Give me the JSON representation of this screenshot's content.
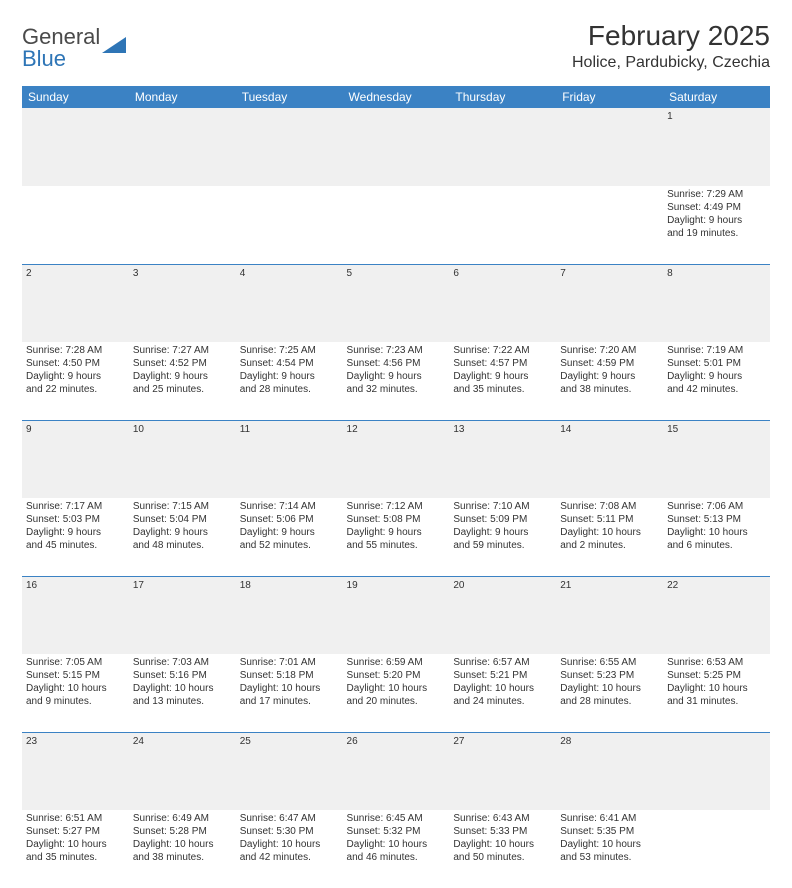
{
  "header": {
    "logo_main": "General",
    "logo_accent": "Blue",
    "month_title": "February 2025",
    "location": "Holice, Pardubicky, Czechia"
  },
  "colors": {
    "header_bg": "#3b82c4",
    "header_text": "#ffffff",
    "daynum_bg": "#f0f0f0",
    "border": "#3b82c4",
    "logo_accent": "#2e75b6"
  },
  "calendar": {
    "type": "table",
    "day_headers": [
      "Sunday",
      "Monday",
      "Tuesday",
      "Wednesday",
      "Thursday",
      "Friday",
      "Saturday"
    ],
    "weeks": [
      [
        {
          "day": "",
          "lines": [
            "",
            "",
            "",
            ""
          ]
        },
        {
          "day": "",
          "lines": [
            "",
            "",
            "",
            ""
          ]
        },
        {
          "day": "",
          "lines": [
            "",
            "",
            "",
            ""
          ]
        },
        {
          "day": "",
          "lines": [
            "",
            "",
            "",
            ""
          ]
        },
        {
          "day": "",
          "lines": [
            "",
            "",
            "",
            ""
          ]
        },
        {
          "day": "",
          "lines": [
            "",
            "",
            "",
            ""
          ]
        },
        {
          "day": "1",
          "lines": [
            "Sunrise: 7:29 AM",
            "Sunset: 4:49 PM",
            "Daylight: 9 hours",
            "and 19 minutes."
          ]
        }
      ],
      [
        {
          "day": "2",
          "lines": [
            "Sunrise: 7:28 AM",
            "Sunset: 4:50 PM",
            "Daylight: 9 hours",
            "and 22 minutes."
          ]
        },
        {
          "day": "3",
          "lines": [
            "Sunrise: 7:27 AM",
            "Sunset: 4:52 PM",
            "Daylight: 9 hours",
            "and 25 minutes."
          ]
        },
        {
          "day": "4",
          "lines": [
            "Sunrise: 7:25 AM",
            "Sunset: 4:54 PM",
            "Daylight: 9 hours",
            "and 28 minutes."
          ]
        },
        {
          "day": "5",
          "lines": [
            "Sunrise: 7:23 AM",
            "Sunset: 4:56 PM",
            "Daylight: 9 hours",
            "and 32 minutes."
          ]
        },
        {
          "day": "6",
          "lines": [
            "Sunrise: 7:22 AM",
            "Sunset: 4:57 PM",
            "Daylight: 9 hours",
            "and 35 minutes."
          ]
        },
        {
          "day": "7",
          "lines": [
            "Sunrise: 7:20 AM",
            "Sunset: 4:59 PM",
            "Daylight: 9 hours",
            "and 38 minutes."
          ]
        },
        {
          "day": "8",
          "lines": [
            "Sunrise: 7:19 AM",
            "Sunset: 5:01 PM",
            "Daylight: 9 hours",
            "and 42 minutes."
          ]
        }
      ],
      [
        {
          "day": "9",
          "lines": [
            "Sunrise: 7:17 AM",
            "Sunset: 5:03 PM",
            "Daylight: 9 hours",
            "and 45 minutes."
          ]
        },
        {
          "day": "10",
          "lines": [
            "Sunrise: 7:15 AM",
            "Sunset: 5:04 PM",
            "Daylight: 9 hours",
            "and 48 minutes."
          ]
        },
        {
          "day": "11",
          "lines": [
            "Sunrise: 7:14 AM",
            "Sunset: 5:06 PM",
            "Daylight: 9 hours",
            "and 52 minutes."
          ]
        },
        {
          "day": "12",
          "lines": [
            "Sunrise: 7:12 AM",
            "Sunset: 5:08 PM",
            "Daylight: 9 hours",
            "and 55 minutes."
          ]
        },
        {
          "day": "13",
          "lines": [
            "Sunrise: 7:10 AM",
            "Sunset: 5:09 PM",
            "Daylight: 9 hours",
            "and 59 minutes."
          ]
        },
        {
          "day": "14",
          "lines": [
            "Sunrise: 7:08 AM",
            "Sunset: 5:11 PM",
            "Daylight: 10 hours",
            "and 2 minutes."
          ]
        },
        {
          "day": "15",
          "lines": [
            "Sunrise: 7:06 AM",
            "Sunset: 5:13 PM",
            "Daylight: 10 hours",
            "and 6 minutes."
          ]
        }
      ],
      [
        {
          "day": "16",
          "lines": [
            "Sunrise: 7:05 AM",
            "Sunset: 5:15 PM",
            "Daylight: 10 hours",
            "and 9 minutes."
          ]
        },
        {
          "day": "17",
          "lines": [
            "Sunrise: 7:03 AM",
            "Sunset: 5:16 PM",
            "Daylight: 10 hours",
            "and 13 minutes."
          ]
        },
        {
          "day": "18",
          "lines": [
            "Sunrise: 7:01 AM",
            "Sunset: 5:18 PM",
            "Daylight: 10 hours",
            "and 17 minutes."
          ]
        },
        {
          "day": "19",
          "lines": [
            "Sunrise: 6:59 AM",
            "Sunset: 5:20 PM",
            "Daylight: 10 hours",
            "and 20 minutes."
          ]
        },
        {
          "day": "20",
          "lines": [
            "Sunrise: 6:57 AM",
            "Sunset: 5:21 PM",
            "Daylight: 10 hours",
            "and 24 minutes."
          ]
        },
        {
          "day": "21",
          "lines": [
            "Sunrise: 6:55 AM",
            "Sunset: 5:23 PM",
            "Daylight: 10 hours",
            "and 28 minutes."
          ]
        },
        {
          "day": "22",
          "lines": [
            "Sunrise: 6:53 AM",
            "Sunset: 5:25 PM",
            "Daylight: 10 hours",
            "and 31 minutes."
          ]
        }
      ],
      [
        {
          "day": "23",
          "lines": [
            "Sunrise: 6:51 AM",
            "Sunset: 5:27 PM",
            "Daylight: 10 hours",
            "and 35 minutes."
          ]
        },
        {
          "day": "24",
          "lines": [
            "Sunrise: 6:49 AM",
            "Sunset: 5:28 PM",
            "Daylight: 10 hours",
            "and 38 minutes."
          ]
        },
        {
          "day": "25",
          "lines": [
            "Sunrise: 6:47 AM",
            "Sunset: 5:30 PM",
            "Daylight: 10 hours",
            "and 42 minutes."
          ]
        },
        {
          "day": "26",
          "lines": [
            "Sunrise: 6:45 AM",
            "Sunset: 5:32 PM",
            "Daylight: 10 hours",
            "and 46 minutes."
          ]
        },
        {
          "day": "27",
          "lines": [
            "Sunrise: 6:43 AM",
            "Sunset: 5:33 PM",
            "Daylight: 10 hours",
            "and 50 minutes."
          ]
        },
        {
          "day": "28",
          "lines": [
            "Sunrise: 6:41 AM",
            "Sunset: 5:35 PM",
            "Daylight: 10 hours",
            "and 53 minutes."
          ]
        },
        {
          "day": "",
          "lines": [
            "",
            "",
            "",
            ""
          ]
        }
      ]
    ]
  }
}
